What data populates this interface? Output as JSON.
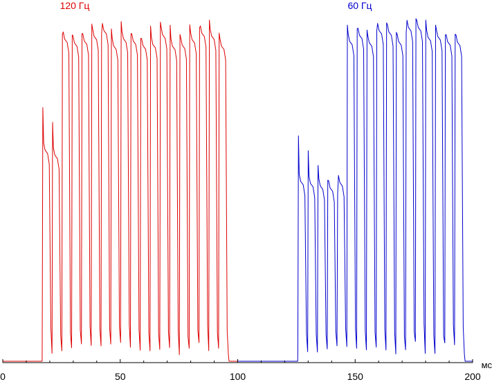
{
  "chart_data": {
    "type": "line",
    "title": "",
    "xlabel": "",
    "ylabel": "",
    "x_unit": "мс",
    "xlim": [
      0,
      200
    ],
    "ylim": [
      0,
      1
    ],
    "x_ticks": [
      0,
      50,
      100,
      150,
      200
    ],
    "x_tick_labels": [
      "0",
      "50",
      "100",
      "150",
      "200"
    ],
    "grid": false,
    "series": [
      {
        "name": "120 Гц",
        "color": "#dd0000",
        "x_range": [
          0,
          100
        ],
        "period_ms": 4.17,
        "transition_start_ms": 16.8,
        "transition_end_ms": 23.3,
        "full_start_ms": 25.0,
        "off_level": 0.004,
        "intermediate_level": 0.6,
        "full_level": 0.97
      },
      {
        "name": "60 Гц",
        "color": "#0000cc",
        "x_range": [
          100,
          200
        ],
        "period_ms": 4.17,
        "transition_start_ms": 125.6,
        "transition_end_ms": 142.0,
        "full_start_ms": 142.5,
        "off_level": 0.004,
        "intermediate_level": 0.52,
        "full_level": 0.98
      }
    ]
  }
}
